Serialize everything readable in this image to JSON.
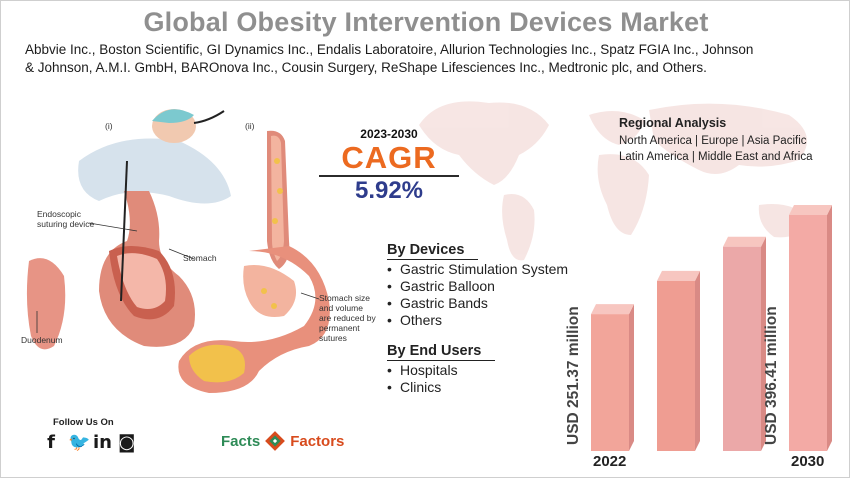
{
  "header": {
    "title": "Global Obesity Intervention Devices Market",
    "companies_line1": "Abbvie Inc., Boston Scientific, GI Dynamics Inc., Endalis Laboratoire, Allurion Technologies Inc., Spatz FGIA Inc., Johnson",
    "companies_line2": "& Johnson, A.M.I. GmbH, BAROnova Inc., Cousin Surgery, ReShape Lifesciences Inc., Medtronic plc, and Others."
  },
  "illustration": {
    "label_i": "(i)",
    "label_ii": "(ii)",
    "endoscopic_1": "Endoscopic",
    "endoscopic_2": "suturing device",
    "stomach": "Stomach",
    "duodenum": "Duodenum",
    "reduced_1": "Stomach size",
    "reduced_2": "and volume",
    "reduced_3": "are reduced by",
    "reduced_4": "permanent",
    "reduced_5": "sutures"
  },
  "cagr": {
    "years": "2023-2030",
    "label": "CAGR",
    "value": "5.92%"
  },
  "regional": {
    "title": "Regional Analysis",
    "line1": "North America | Europe | Asia Pacific",
    "line2": "Latin America | Middle East and Africa"
  },
  "devices": {
    "title": "By Devices",
    "items": [
      "Gastric Stimulation System",
      "Gastric Balloon",
      "Gastric Bands",
      "Others"
    ]
  },
  "end_users": {
    "title": "By End Users",
    "items": [
      "Hospitals",
      "Clinics"
    ]
  },
  "chart_data": {
    "type": "bar",
    "categories": [
      "2022",
      "",
      "",
      "2030"
    ],
    "values": [
      251.37,
      300,
      350,
      396.41
    ],
    "value_labels": [
      "USD 251.37 million",
      "",
      "",
      "USD 396.41 million"
    ],
    "colors": [
      "#f2a59a",
      "#ef9d92",
      "#eba8a8",
      "#f3aaa5"
    ]
  },
  "footer": {
    "follow": "Follow Us On",
    "social_icons": [
      "facebook-icon",
      "twitter-icon",
      "linkedin-icon",
      "instagram-icon"
    ],
    "logo_left": "Facts",
    "logo_right": "Factors"
  }
}
